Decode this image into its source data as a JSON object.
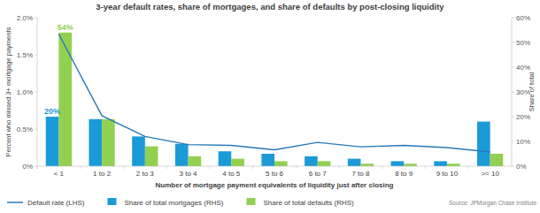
{
  "chart_data": {
    "type": "bar",
    "title": "3-year default rates, share of mortgages, and share of defaults by post-closing liquidity",
    "x_label": "Number of mortgage payment equivalents of liquidity just after closing",
    "y_label": "Percent who missed 3+ mortgage payments",
    "y2_label": "Share of total",
    "source": "Source: JPMorgan Chase Institute",
    "categories": [
      "< 1",
      "1 to 2",
      "2 to 3",
      "3 to 4",
      "4 to 5",
      "5 to 6",
      "6 to 7",
      "7 to 8",
      "8 to 9",
      "9 to 10",
      ">= 10"
    ],
    "ylim": [
      0,
      2
    ],
    "yticks": [
      {
        "value": 0,
        "label": "0%"
      },
      {
        "value": 0.5,
        "label": "0.5%"
      },
      {
        "value": 1,
        "label": "1.0%"
      },
      {
        "value": 1.5,
        "label": "1.5%"
      },
      {
        "value": 2,
        "label": "2.0%"
      }
    ],
    "y2lim": [
      0,
      60
    ],
    "y2ticks": [
      {
        "value": 0,
        "label": "0%"
      },
      {
        "value": 10,
        "label": "10%"
      },
      {
        "value": 20,
        "label": "20%"
      },
      {
        "value": 30,
        "label": "30%"
      },
      {
        "value": 40,
        "label": "40%"
      },
      {
        "value": 50,
        "label": "50%"
      },
      {
        "value": 60,
        "label": "60%"
      }
    ],
    "grid": false,
    "legend": "bottom",
    "series": [
      {
        "name": "Default rate (LHS)",
        "type": "line",
        "color": "#2878b8",
        "marker": "none",
        "line_style": "solid",
        "values": [
          1.78,
          0.68,
          0.4,
          0.29,
          0.28,
          0.22,
          0.32,
          0.26,
          0.28,
          0.25,
          0.19
        ]
      },
      {
        "name": "Share of total mortgages (RHS)",
        "type": "bar",
        "axis": "y2",
        "color": "#1b9ad8",
        "values": [
          20,
          19,
          12,
          9,
          6,
          5,
          4,
          3,
          2,
          2,
          18
        ],
        "value_labels": [
          "20%",
          null,
          null,
          null,
          null,
          null,
          null,
          null,
          null,
          null,
          null
        ]
      },
      {
        "name": "Share of total defaults (RHS)",
        "type": "bar",
        "axis": "y2",
        "color": "#92d050",
        "values": [
          54,
          19,
          8,
          4,
          3,
          2,
          2,
          1,
          1,
          1,
          5
        ],
        "value_labels": [
          "54%",
          null,
          null,
          null,
          null,
          null,
          null,
          null,
          null,
          null,
          null
        ]
      }
    ]
  }
}
